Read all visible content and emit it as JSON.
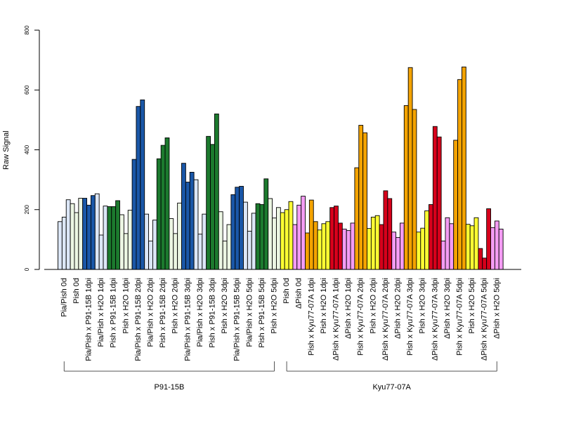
{
  "chart_data": {
    "type": "bar",
    "title": "",
    "xlabel": "",
    "ylabel": "Raw Signal",
    "ylim": [
      0,
      800
    ],
    "yticks": [
      0,
      200,
      400,
      600,
      800
    ],
    "grid": false,
    "legend": "none",
    "categories": [
      "Pia/Pish 0d",
      "Pish 0d",
      "Pia/Pish x P91-15B 1dpi",
      "Pia/Pish x H2O 1dpi",
      "Pish x P91-15B 1dpi",
      "Pish x H2O 1dpi",
      "Pia/Pish x P91-15B 2dpi",
      "Pia/Pish x H2O 2dpi",
      "Pish x P91-15B 2dpi",
      "Pish x H2O 2dpi",
      "Pia/Pish x P91-15B 3dpi",
      "Pia/Pish x H2O 3dpi",
      "Pish x P91-15B 3dpi",
      "Pish x H2O 3dpi",
      "Pia/Pish x P91-15B 5dpi",
      "Pia/Pish x H2O 5dpi",
      "Pish x P91-15B 5dpi",
      "Pish x H2O 5dpi",
      "Pish 0d",
      "ΔPish 0d",
      "Pish x Kyu77-07A 1dpi",
      "Pish x H2O 1dpi",
      "ΔPish x Kyu77-07A 1dpi",
      "ΔPish x H2O 1dpi",
      "Pish x Kyu77-07A 2dpi",
      "Pish x H2O 2dpi",
      "ΔPish x Kyu77-07A 2dpi",
      "ΔPish x H2O 2dpi",
      "Pish x Kyu77-07A 3dpi",
      "Pish x H2O 3dpi",
      "ΔPish x Kyu77-07A 3dpi",
      "ΔPish x H2O 3dpi",
      "Pish x Kyu77-07A 5dpi",
      "Pish x H2O 5dpi",
      "ΔPish x Kyu77-07A 5dpi",
      "ΔPish x H2O 5dpi"
    ],
    "series": [
      {
        "values": [
          [
            160,
            175,
            233
          ],
          [
            220,
            190,
            238
          ],
          [
            238,
            215,
            247
          ],
          [
            253,
            115,
            212
          ],
          [
            210,
            210,
            230
          ],
          [
            183,
            120,
            198
          ],
          [
            368,
            545,
            567
          ],
          [
            185,
            95,
            165
          ],
          [
            370,
            415,
            440
          ],
          [
            170,
            120,
            222
          ],
          [
            355,
            292,
            325
          ],
          [
            300,
            118,
            185
          ],
          [
            445,
            418,
            520
          ],
          [
            193,
            95,
            150
          ],
          [
            250,
            275,
            278
          ],
          [
            225,
            128,
            188
          ],
          [
            220,
            217,
            303
          ],
          [
            237,
            172,
            207
          ],
          [
            190,
            200,
            227
          ],
          [
            150,
            215,
            245
          ],
          [
            122,
            232,
            160
          ],
          [
            132,
            153,
            160
          ],
          [
            207,
            212,
            155
          ],
          [
            135,
            130,
            155
          ],
          [
            340,
            482,
            457
          ],
          [
            137,
            175,
            180
          ],
          [
            150,
            263,
            237
          ],
          [
            125,
            107,
            155
          ],
          [
            548,
            675,
            535
          ],
          [
            125,
            138,
            196
          ],
          [
            217,
            478,
            443
          ],
          [
            95,
            173,
            153
          ],
          [
            432,
            635,
            677
          ],
          [
            151,
            146,
            173
          ],
          [
            70,
            38,
            203
          ],
          [
            140,
            162,
            135
          ]
        ]
      }
    ],
    "bar_colors": [
      "#dce7f7",
      "#ecf6e3",
      "#1a57a8",
      "#dce7f7",
      "#1c7a2e",
      "#ecf6e3",
      "#1a57a8",
      "#dce7f7",
      "#1c7a2e",
      "#ecf6e3",
      "#1a57a8",
      "#dce7f7",
      "#1c7a2e",
      "#ecf6e3",
      "#1a57a8",
      "#dce7f7",
      "#1c7a2e",
      "#ecf6e3",
      "#ffff33",
      "#f49cf4",
      "#f4a300",
      "#ffff33",
      "#d7001b",
      "#f49cf4",
      "#f4a300",
      "#ffff33",
      "#d7001b",
      "#f49cf4",
      "#f4a300",
      "#ffff33",
      "#d7001b",
      "#f49cf4",
      "#f4a300",
      "#ffff33",
      "#d7001b",
      "#f49cf4"
    ],
    "groups": [
      {
        "label": "P91-15B",
        "from": 0,
        "to": 17
      },
      {
        "label": "Kyu77-07A",
        "from": 18,
        "to": 35
      }
    ]
  }
}
